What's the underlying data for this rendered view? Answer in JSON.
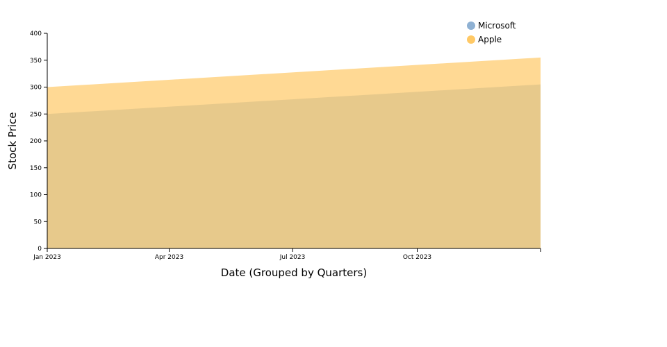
{
  "chart_data": {
    "type": "area",
    "x": [
      "2023-01-01",
      "2023-12-31"
    ],
    "xticks": [
      {
        "date": "2023-01-01",
        "label": "Jan 2023"
      },
      {
        "date": "2023-04-01",
        "label": "Apr 2023"
      },
      {
        "date": "2023-07-01",
        "label": "Jul 2023"
      },
      {
        "date": "2023-10-01",
        "label": "Oct 2023"
      }
    ],
    "xlim": [
      "2023-01-01",
      "2023-12-31"
    ],
    "ylim": [
      0,
      400
    ],
    "yticks": [
      0,
      50,
      100,
      150,
      200,
      250,
      300,
      350,
      400
    ],
    "xlabel": "Date (Grouped by Quarters)",
    "ylabel": "Stock Price",
    "series": [
      {
        "name": "Microsoft",
        "values": [
          250,
          305
        ],
        "color": "#8fb1d3"
      },
      {
        "name": "Apple",
        "values": [
          300,
          355
        ],
        "color": "#ffc966"
      }
    ],
    "stacked": false,
    "grid": false,
    "legend_position": "top-right"
  }
}
